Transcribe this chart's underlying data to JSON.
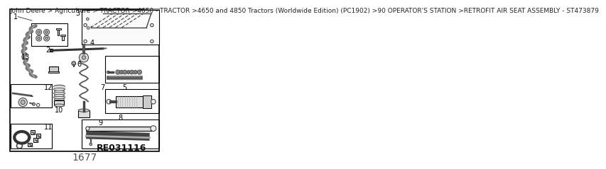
{
  "page_title": "John Deere > Agriculture > TRACTOR >4650 - TRACTOR >4650 and 4850 Tractors (Worldwide Edition) (PC1902) >90 OPERATOR'S STATION >RETROFIT AIR SEAT ASSEMBLY - ST473879",
  "page_number": "1677",
  "part_number": "RE031116",
  "bg_color": "#ffffff",
  "border_color": "#000000",
  "title_fontsize": 6.5,
  "page_num_fontsize": 10
}
